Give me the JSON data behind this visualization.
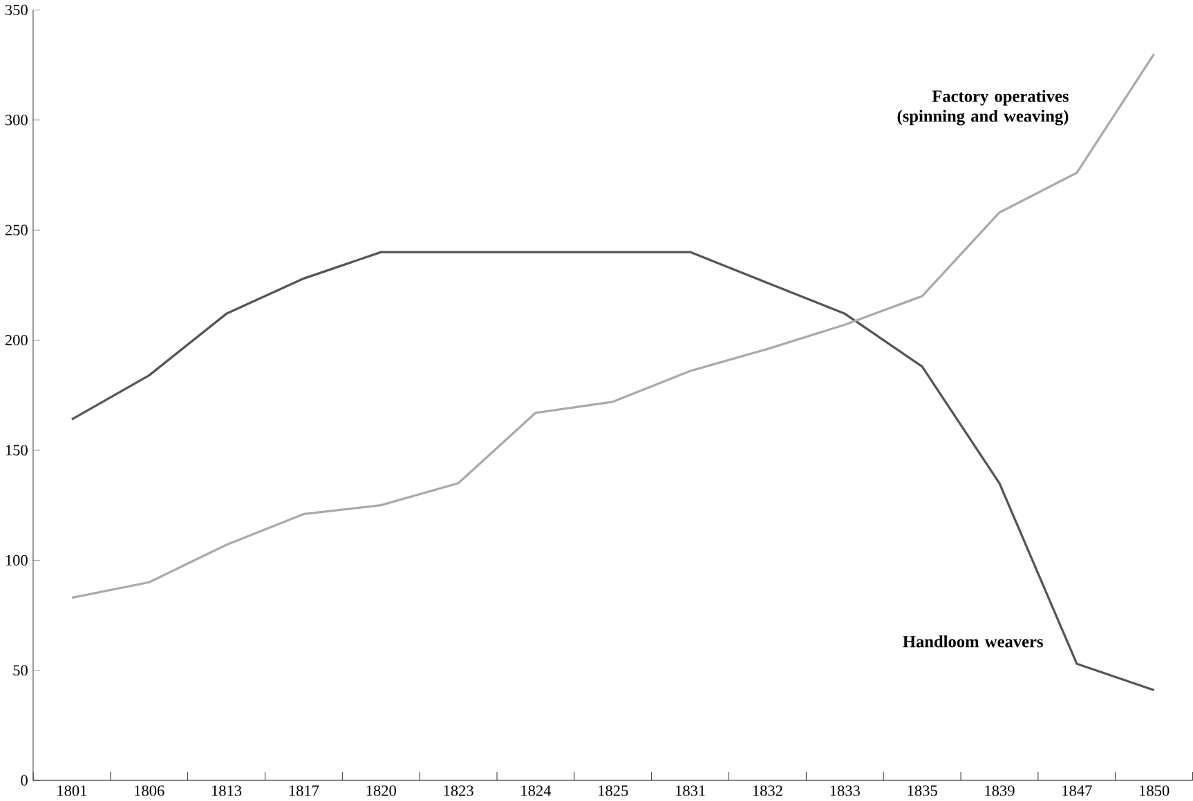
{
  "chart_data": {
    "type": "line",
    "categories": [
      "1801",
      "1806",
      "1813",
      "1817",
      "1820",
      "1823",
      "1824",
      "1825",
      "1831",
      "1832",
      "1833",
      "1835",
      "1839",
      "1847",
      "1850"
    ],
    "series": [
      {
        "name": "Handloom weavers",
        "color": "#555555",
        "values": [
          164,
          184,
          212,
          228,
          240,
          240,
          240,
          240,
          240,
          226,
          212,
          188,
          135,
          53,
          41
        ]
      },
      {
        "name": "Factory operatives (spinning and weaving)",
        "color": "#aaaaaa",
        "values": [
          83,
          90,
          107,
          121,
          125,
          135,
          167,
          172,
          186,
          196,
          207,
          220,
          258,
          276,
          330
        ]
      }
    ],
    "ylim": [
      0,
      350
    ],
    "yticks": [
      0,
      50,
      100,
      150,
      200,
      250,
      300,
      350
    ],
    "grid": false,
    "marker": "none",
    "line_style": "solid"
  }
}
